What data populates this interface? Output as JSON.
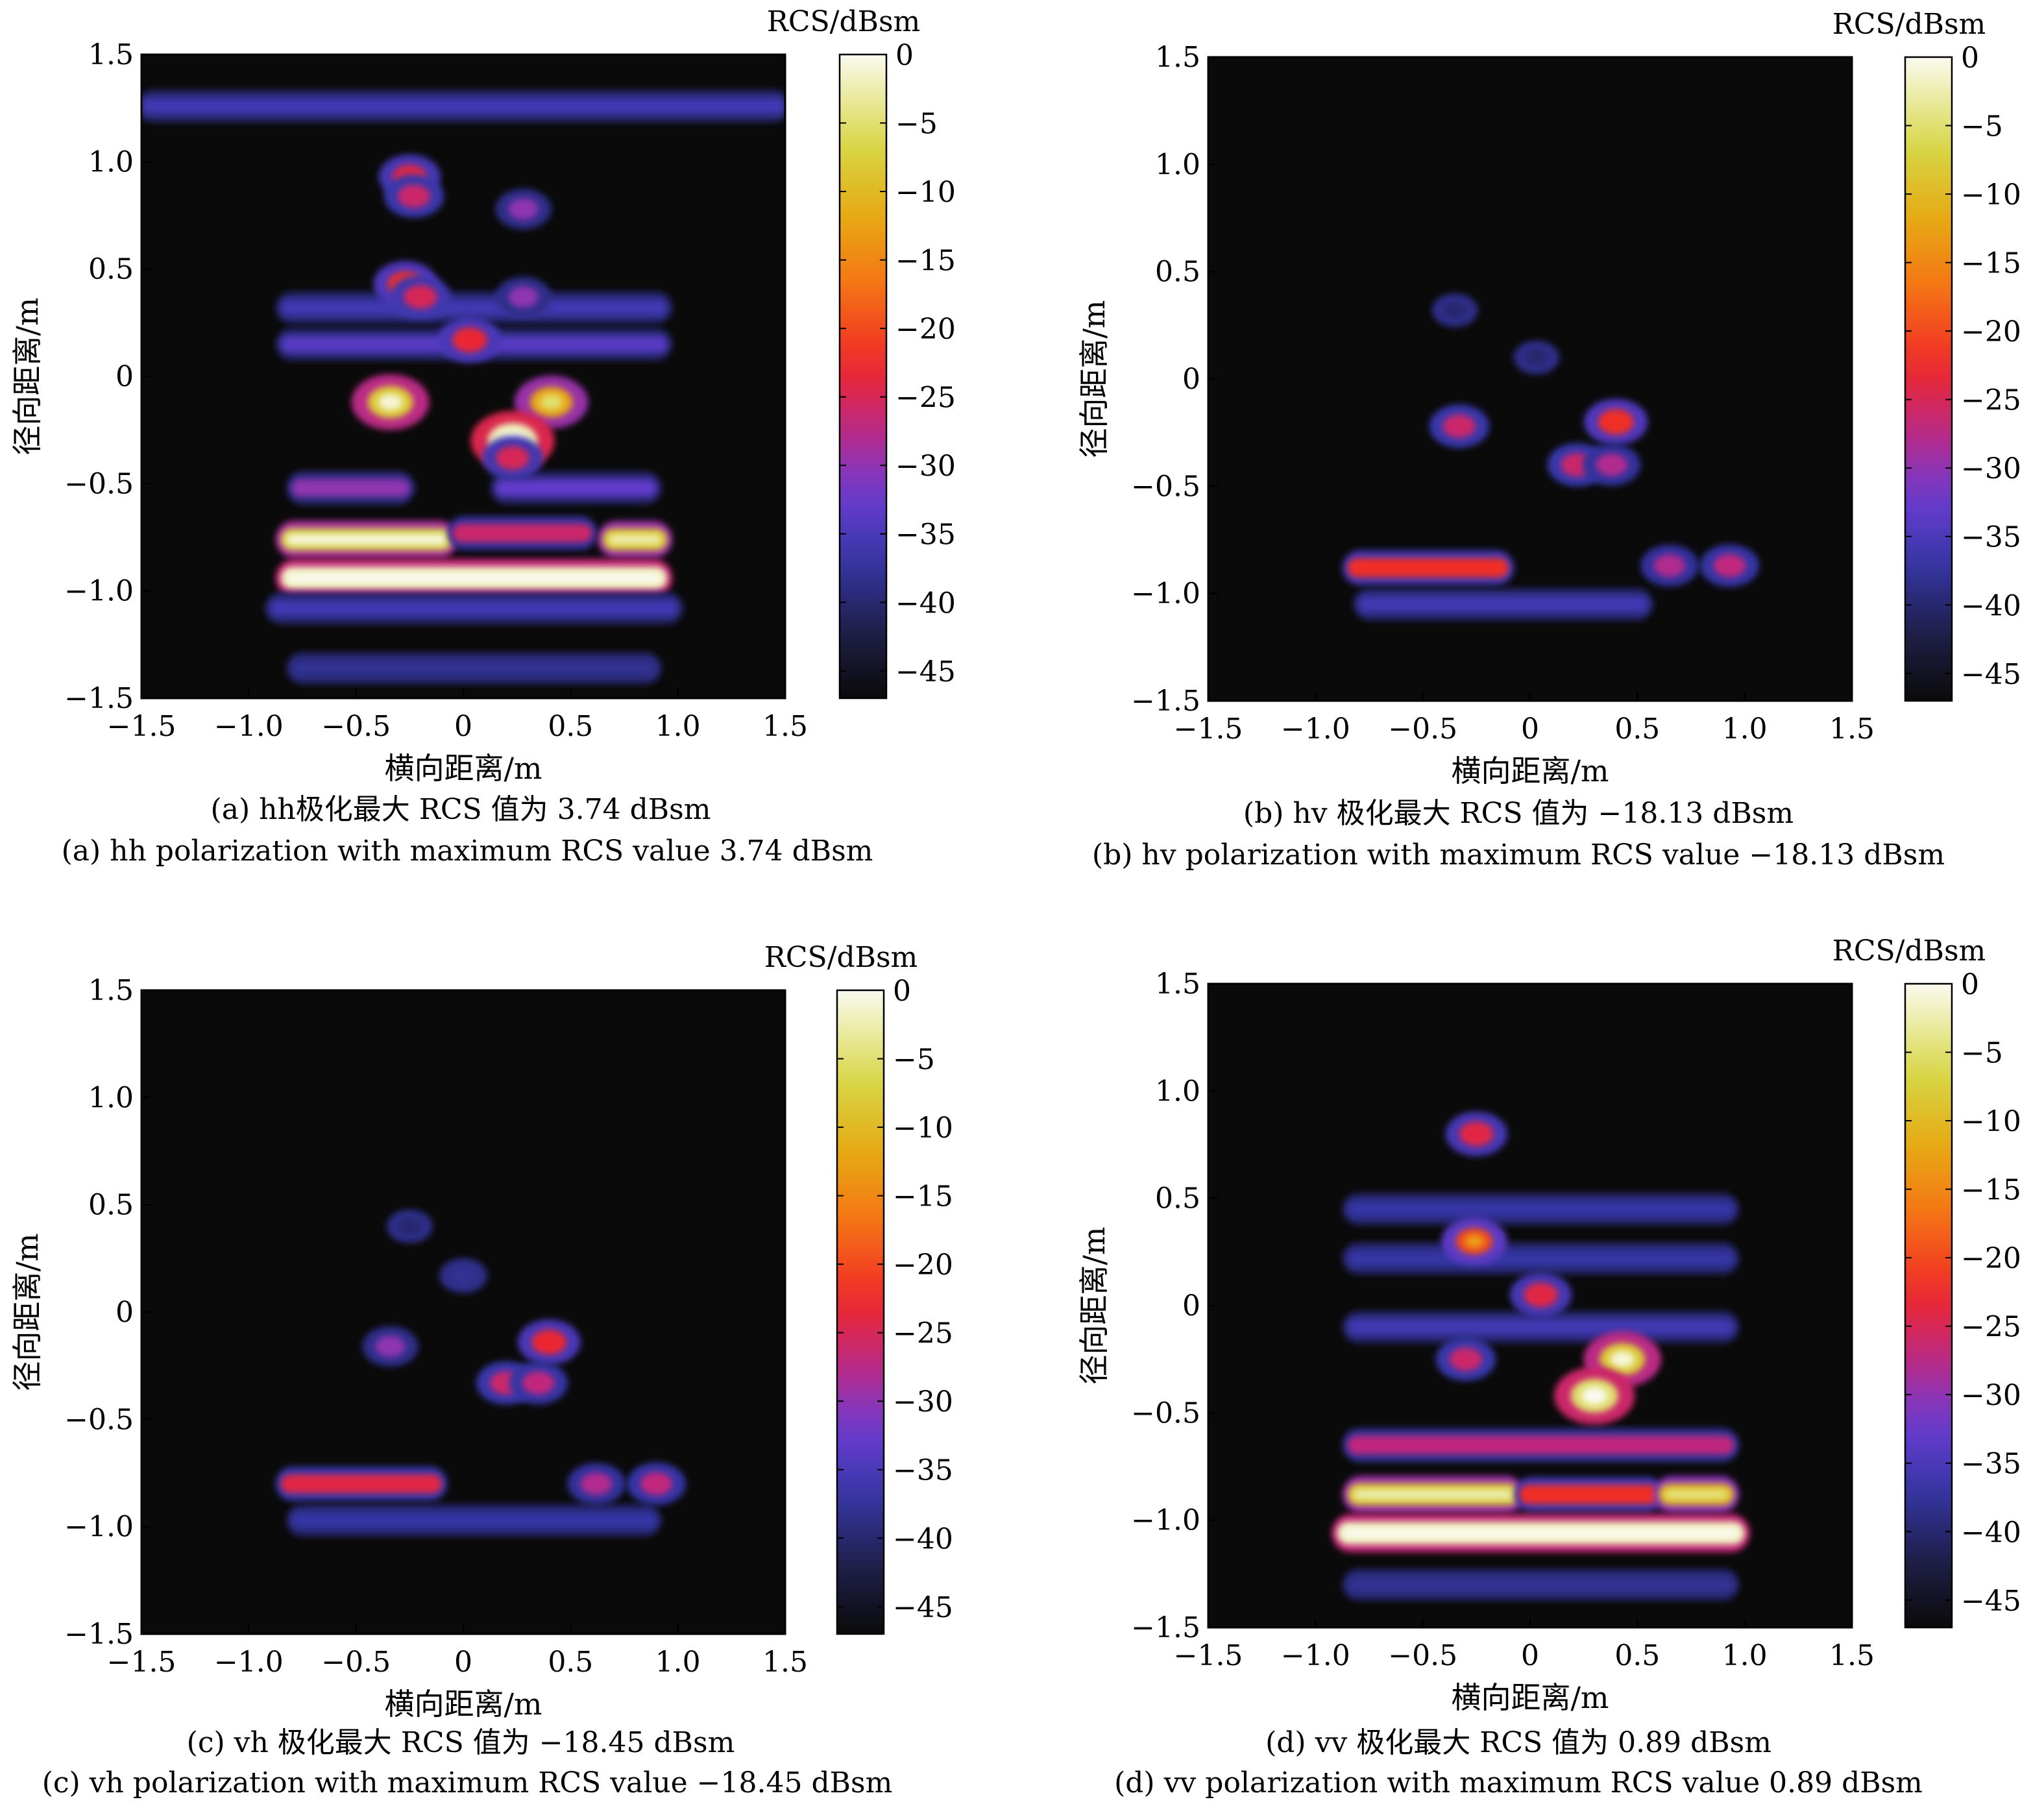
{
  "figure": {
    "panels": [
      {
        "id": "a",
        "caption_cn": "(a) hh极化最大 RCS 值为 3.74 dBsm",
        "caption_en": "(a) hh polarization with maximum RCS value 3.74 dBsm"
      },
      {
        "id": "b",
        "caption_cn": "(b) hv 极化最大 RCS 值为 −18.13 dBsm",
        "caption_en": "(b) hv polarization with maximum RCS value −18.13 dBsm"
      },
      {
        "id": "c",
        "caption_cn": "(c) vh 极化最大 RCS 值为 −18.45 dBsm",
        "caption_en": "(c) vh polarization with maximum RCS value −18.45 dBsm"
      },
      {
        "id": "d",
        "caption_cn": "(d) vv 极化最大 RCS 值为 0.89 dBsm",
        "caption_en": "(d) vv polarization with maximum RCS value 0.89 dBsm"
      }
    ]
  },
  "chart_data": [
    {
      "type": "heatmap",
      "panel": "a",
      "polarization": "hh",
      "xlabel": "横向距离/m",
      "ylabel": "径向距离/m",
      "xlim": [
        -1.5,
        1.5
      ],
      "ylim": [
        -1.5,
        1.5
      ],
      "xticks": [
        "−1.5",
        "−1.0",
        "−0.5",
        "0",
        "0.5",
        "1.0",
        "1.5"
      ],
      "yticks": [
        "1.5",
        "1.0",
        "0.5",
        "0",
        "−0.5",
        "−1.0",
        "−1.5"
      ],
      "colorbar": {
        "title": "RCS/dBsm",
        "range": [
          -47,
          0
        ],
        "ticks": [
          "0",
          "−5",
          "−10",
          "−15",
          "−20",
          "−25",
          "−30",
          "−35",
          "−40",
          "−45"
        ]
      },
      "max_rcs_dbsm": 3.74,
      "scatterers": [
        {
          "x": -0.25,
          "y": 0.93,
          "rcs": -24
        },
        {
          "x": -0.23,
          "y": 0.84,
          "rcs": -26
        },
        {
          "x": 0.28,
          "y": 0.78,
          "rcs": -30
        },
        {
          "x": -0.27,
          "y": 0.43,
          "rcs": -22
        },
        {
          "x": -0.2,
          "y": 0.37,
          "rcs": -25
        },
        {
          "x": 0.28,
          "y": 0.37,
          "rcs": -30
        },
        {
          "x": 0.03,
          "y": 0.17,
          "rcs": -23
        },
        {
          "x": -0.34,
          "y": -0.12,
          "rcs": -8
        },
        {
          "x": 0.41,
          "y": -0.12,
          "rcs": -12
        },
        {
          "x": 0.23,
          "y": -0.3,
          "rcs": -2
        },
        {
          "x": 0.23,
          "y": -0.38,
          "rcs": -25
        }
      ],
      "bands": [
        {
          "x1": -1.5,
          "x2": 1.5,
          "y": 1.26,
          "rcs": -36
        },
        {
          "x1": -0.85,
          "x2": 0.95,
          "y": 0.32,
          "rcs": -36
        },
        {
          "x1": -0.85,
          "x2": 0.95,
          "y": 0.15,
          "rcs": -34
        },
        {
          "x1": -0.8,
          "x2": -0.25,
          "y": -0.52,
          "rcs": -30
        },
        {
          "x1": 0.15,
          "x2": 0.9,
          "y": -0.52,
          "rcs": -33
        },
        {
          "x1": -0.85,
          "x2": -0.05,
          "y": -0.76,
          "rcs": -6
        },
        {
          "x1": -0.05,
          "x2": 0.6,
          "y": -0.73,
          "rcs": -26
        },
        {
          "x1": 0.65,
          "x2": 0.95,
          "y": -0.76,
          "rcs": -8
        },
        {
          "x1": -0.85,
          "x2": 0.95,
          "y": -0.94,
          "rcs": -2
        },
        {
          "x1": -0.9,
          "x2": 1.0,
          "y": -1.08,
          "rcs": -36
        },
        {
          "x1": -0.8,
          "x2": 0.9,
          "y": -1.36,
          "rcs": -38
        }
      ]
    },
    {
      "type": "heatmap",
      "panel": "b",
      "polarization": "hv",
      "xlabel": "横向距离/m",
      "ylabel": "径向距离/m",
      "xlim": [
        -1.5,
        1.5
      ],
      "ylim": [
        -1.5,
        1.5
      ],
      "xticks": [
        "−1.5",
        "−1.0",
        "−0.5",
        "0",
        "0.5",
        "1.0",
        "1.5"
      ],
      "yticks": [
        "1.5",
        "1.0",
        "0.5",
        "0",
        "−0.5",
        "−1.0",
        "−1.5"
      ],
      "colorbar": {
        "title": "RCS/dBsm",
        "range": [
          -47,
          0
        ],
        "ticks": [
          "0",
          "−5",
          "−10",
          "−15",
          "−20",
          "−25",
          "−30",
          "−35",
          "−40",
          "−45"
        ]
      },
      "max_rcs_dbsm": -18.13,
      "scatterers": [
        {
          "x": -0.35,
          "y": 0.32,
          "rcs": -40
        },
        {
          "x": 0.03,
          "y": 0.1,
          "rcs": -40
        },
        {
          "x": -0.33,
          "y": -0.22,
          "rcs": -26
        },
        {
          "x": 0.4,
          "y": -0.2,
          "rcs": -22
        },
        {
          "x": 0.22,
          "y": -0.4,
          "rcs": -26
        },
        {
          "x": 0.38,
          "y": -0.4,
          "rcs": -28
        },
        {
          "x": 0.65,
          "y": -0.87,
          "rcs": -28
        },
        {
          "x": 0.93,
          "y": -0.87,
          "rcs": -27
        }
      ],
      "bands": [
        {
          "x1": -0.85,
          "x2": -0.1,
          "y": -0.88,
          "rcs": -22
        },
        {
          "x1": -0.8,
          "x2": 0.55,
          "y": -1.05,
          "rcs": -36
        }
      ]
    },
    {
      "type": "heatmap",
      "panel": "c",
      "polarization": "vh",
      "xlabel": "横向距离/m",
      "ylabel": "径向距离/m",
      "xlim": [
        -1.5,
        1.5
      ],
      "ylim": [
        -1.5,
        1.5
      ],
      "xticks": [
        "−1.5",
        "−1.0",
        "−0.5",
        "0",
        "0.5",
        "1.0",
        "1.5"
      ],
      "yticks": [
        "1.5",
        "1.0",
        "0.5",
        "0",
        "−0.5",
        "−1.0",
        "−1.5"
      ],
      "colorbar": {
        "title": "RCS/dBsm",
        "range": [
          -47,
          0
        ],
        "ticks": [
          "0",
          "−5",
          "−10",
          "−15",
          "−20",
          "−25",
          "−30",
          "−35",
          "−40",
          "−45"
        ]
      },
      "max_rcs_dbsm": -18.45,
      "scatterers": [
        {
          "x": -0.25,
          "y": 0.4,
          "rcs": -40
        },
        {
          "x": 0.0,
          "y": 0.17,
          "rcs": -38
        },
        {
          "x": -0.34,
          "y": -0.16,
          "rcs": -30
        },
        {
          "x": 0.4,
          "y": -0.14,
          "rcs": -23
        },
        {
          "x": 0.2,
          "y": -0.33,
          "rcs": -26
        },
        {
          "x": 0.35,
          "y": -0.33,
          "rcs": -27
        },
        {
          "x": 0.62,
          "y": -0.8,
          "rcs": -28
        },
        {
          "x": 0.9,
          "y": -0.8,
          "rcs": -27
        }
      ],
      "bands": [
        {
          "x1": -0.85,
          "x2": -0.1,
          "y": -0.8,
          "rcs": -24
        },
        {
          "x1": -0.8,
          "x2": 0.9,
          "y": -0.97,
          "rcs": -37
        }
      ]
    },
    {
      "type": "heatmap",
      "panel": "d",
      "polarization": "vv",
      "xlabel": "横向距离/m",
      "ylabel": "径向距离/m",
      "xlim": [
        -1.5,
        1.5
      ],
      "ylim": [
        -1.5,
        1.5
      ],
      "xticks": [
        "−1.5",
        "−1.0",
        "−0.5",
        "0",
        "0.5",
        "1.0",
        "1.5"
      ],
      "yticks": [
        "1.5",
        "1.0",
        "0.5",
        "0",
        "−0.5",
        "−1.0",
        "−1.5"
      ],
      "colorbar": {
        "title": "RCS/dBsm",
        "range": [
          -47,
          0
        ],
        "ticks": [
          "0",
          "−5",
          "−10",
          "−15",
          "−20",
          "−25",
          "−30",
          "−35",
          "−40",
          "−45"
        ]
      },
      "max_rcs_dbsm": 0.89,
      "scatterers": [
        {
          "x": -0.25,
          "y": 0.8,
          "rcs": -24
        },
        {
          "x": -0.26,
          "y": 0.3,
          "rcs": -20
        },
        {
          "x": 0.05,
          "y": 0.05,
          "rcs": -24
        },
        {
          "x": -0.3,
          "y": -0.25,
          "rcs": -26
        },
        {
          "x": 0.43,
          "y": -0.25,
          "rcs": -8
        },
        {
          "x": 0.3,
          "y": -0.42,
          "rcs": -5
        }
      ],
      "bands": [
        {
          "x1": -0.85,
          "x2": 0.95,
          "y": 0.45,
          "rcs": -37
        },
        {
          "x1": -0.85,
          "x2": 0.95,
          "y": 0.22,
          "rcs": -37
        },
        {
          "x1": -0.85,
          "x2": 0.95,
          "y": -0.1,
          "rcs": -36
        },
        {
          "x1": -0.85,
          "x2": 0.95,
          "y": -0.65,
          "rcs": -27
        },
        {
          "x1": -0.85,
          "x2": -0.05,
          "y": -0.88,
          "rcs": -8
        },
        {
          "x1": -0.05,
          "x2": 0.6,
          "y": -0.88,
          "rcs": -22
        },
        {
          "x1": 0.6,
          "x2": 0.95,
          "y": -0.88,
          "rcs": -10
        },
        {
          "x1": -0.9,
          "x2": 1.0,
          "y": -1.06,
          "rcs": -2
        },
        {
          "x1": -0.85,
          "x2": 0.95,
          "y": -1.3,
          "rcs": -38
        }
      ]
    }
  ]
}
